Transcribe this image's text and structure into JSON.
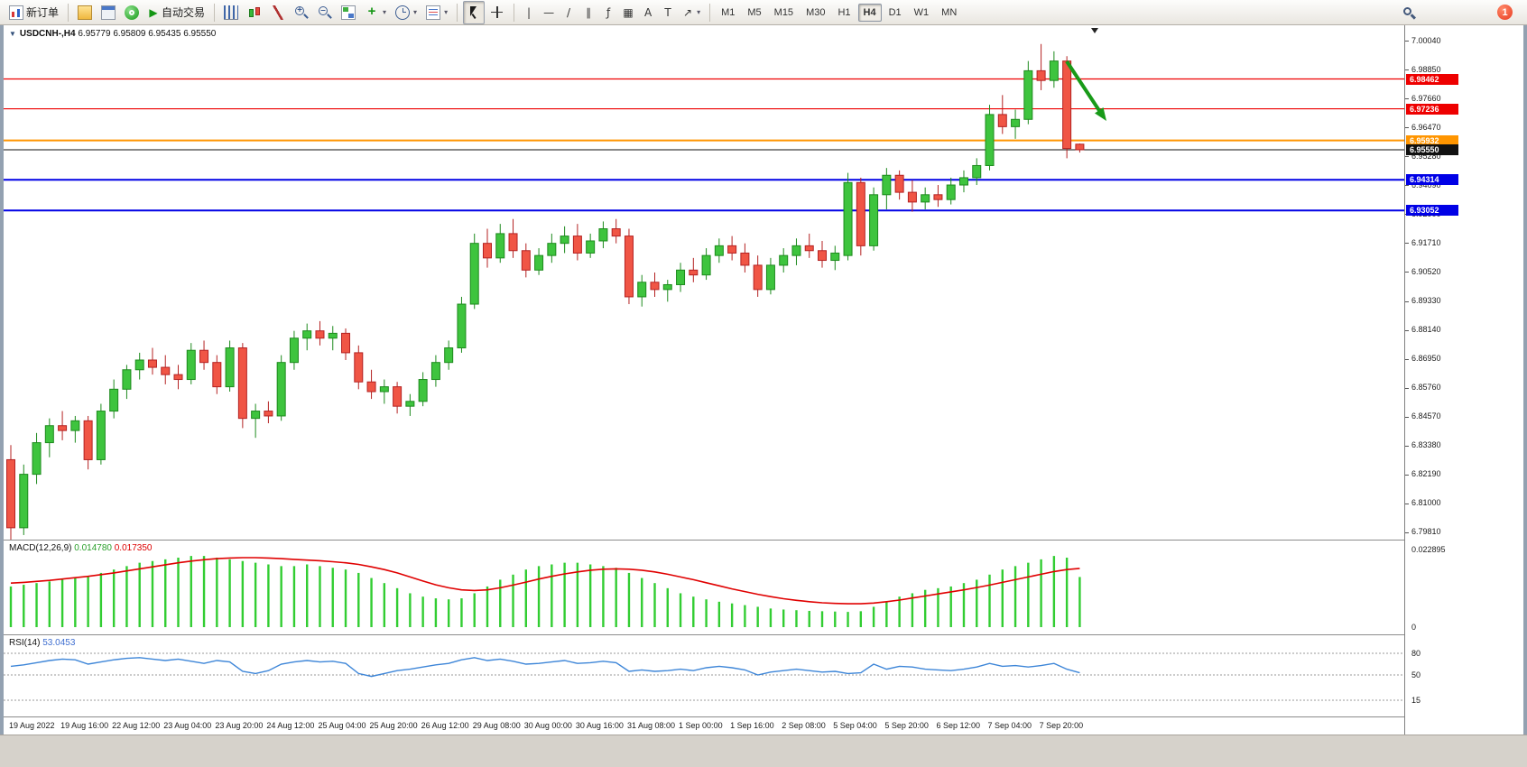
{
  "toolbar": {
    "new_order_label": "新订单",
    "autotrading_label": "自动交易",
    "timeframes": [
      "M1",
      "M5",
      "M15",
      "M30",
      "H1",
      "H4",
      "D1",
      "W1",
      "MN"
    ],
    "active_timeframe": "H4",
    "notification_badge": "1",
    "glyphs": {
      "dropdown": "▾",
      "play": "▶",
      "vertical_line": "|",
      "horizontal_line": "—",
      "trendline": "/",
      "channel": "∥",
      "fibonacci": "ƒ",
      "shapes": "▦",
      "text": "A",
      "label": "T",
      "arrows": "↗"
    }
  },
  "chart": {
    "collapse_marker": "▼",
    "symbol_period": "USDCNH-,H4",
    "open": "6.95779",
    "high": "6.95809",
    "low": "6.95435",
    "close": "6.95550"
  },
  "indicators": {
    "macd": {
      "label": "MACD(12,26,9)",
      "main_value": "0.014780",
      "signal_value": "0.017350"
    },
    "rsi": {
      "label": "RSI(14)",
      "value": "53.0453"
    }
  },
  "chart_data": {
    "type": "candlestick",
    "symbol": "USDCNH-",
    "period": "H4",
    "price_ticks": [
      "7.00040",
      "6.98850",
      "6.97660",
      "6.96470",
      "6.95280",
      "6.94090",
      "6.92900",
      "6.91710",
      "6.90520",
      "6.89330",
      "6.88140",
      "6.86950",
      "6.85760",
      "6.84570",
      "6.83380",
      "6.82190",
      "6.81000",
      "6.79810"
    ],
    "time_labels": [
      "19 Aug 2022",
      "19 Aug 16:00",
      "22 Aug 12:00",
      "23 Aug 04:00",
      "23 Aug 20:00",
      "24 Aug 12:00",
      "25 Aug 04:00",
      "25 Aug 20:00",
      "26 Aug 12:00",
      "29 Aug 08:00",
      "30 Aug 00:00",
      "30 Aug 16:00",
      "31 Aug 08:00",
      "1 Sep 00:00",
      "1 Sep 16:00",
      "2 Sep 08:00",
      "5 Sep 04:00",
      "5 Sep 20:00",
      "6 Sep 12:00",
      "7 Sep 04:00",
      "7 Sep 20:00"
    ],
    "candles": [
      [
        6.828,
        6.834,
        6.795,
        6.8
      ],
      [
        6.8,
        6.826,
        6.797,
        6.822
      ],
      [
        6.822,
        6.839,
        6.818,
        6.835
      ],
      [
        6.835,
        6.845,
        6.829,
        6.842
      ],
      [
        6.842,
        6.848,
        6.836,
        6.84
      ],
      [
        6.84,
        6.846,
        6.835,
        6.844
      ],
      [
        6.844,
        6.846,
        6.824,
        6.828
      ],
      [
        6.828,
        6.851,
        6.826,
        6.848
      ],
      [
        6.848,
        6.861,
        6.845,
        6.857
      ],
      [
        6.857,
        6.867,
        6.853,
        6.865
      ],
      [
        6.865,
        6.872,
        6.861,
        6.869
      ],
      [
        6.869,
        6.874,
        6.863,
        6.866
      ],
      [
        6.866,
        6.871,
        6.859,
        6.863
      ],
      [
        6.863,
        6.867,
        6.857,
        6.861
      ],
      [
        6.861,
        6.876,
        6.859,
        6.873
      ],
      [
        6.873,
        6.877,
        6.865,
        6.868
      ],
      [
        6.868,
        6.871,
        6.855,
        6.858
      ],
      [
        6.858,
        6.877,
        6.856,
        6.874
      ],
      [
        6.874,
        6.876,
        6.841,
        6.845
      ],
      [
        6.845,
        6.851,
        6.837,
        6.848
      ],
      [
        6.848,
        6.852,
        6.843,
        6.846
      ],
      [
        6.846,
        6.871,
        6.844,
        6.868
      ],
      [
        6.868,
        6.881,
        6.865,
        6.878
      ],
      [
        6.878,
        6.884,
        6.873,
        6.881
      ],
      [
        6.881,
        6.885,
        6.875,
        6.878
      ],
      [
        6.878,
        6.883,
        6.873,
        6.88
      ],
      [
        6.88,
        6.882,
        6.869,
        6.872
      ],
      [
        6.872,
        6.875,
        6.857,
        6.86
      ],
      [
        6.86,
        6.865,
        6.853,
        6.856
      ],
      [
        6.856,
        6.861,
        6.851,
        6.858
      ],
      [
        6.858,
        6.86,
        6.847,
        6.85
      ],
      [
        6.85,
        6.855,
        6.846,
        6.852
      ],
      [
        6.852,
        6.864,
        6.85,
        6.861
      ],
      [
        6.861,
        6.871,
        6.858,
        6.868
      ],
      [
        6.868,
        6.877,
        6.865,
        6.874
      ],
      [
        6.874,
        6.895,
        6.872,
        6.892
      ],
      [
        6.892,
        6.921,
        6.89,
        6.917
      ],
      [
        6.917,
        6.923,
        6.907,
        6.911
      ],
      [
        6.911,
        6.925,
        6.909,
        6.921
      ],
      [
        6.921,
        6.927,
        6.911,
        6.914
      ],
      [
        6.914,
        6.917,
        6.903,
        6.906
      ],
      [
        6.906,
        6.915,
        6.904,
        6.912
      ],
      [
        6.912,
        6.921,
        6.909,
        6.917
      ],
      [
        6.917,
        6.924,
        6.913,
        6.92
      ],
      [
        6.92,
        6.925,
        6.91,
        6.913
      ],
      [
        6.913,
        6.921,
        6.911,
        6.918
      ],
      [
        6.918,
        6.926,
        6.915,
        6.923
      ],
      [
        6.923,
        6.927,
        6.917,
        6.92
      ],
      [
        6.92,
        6.923,
        6.892,
        6.895
      ],
      [
        6.895,
        6.904,
        6.891,
        6.901
      ],
      [
        6.901,
        6.905,
        6.895,
        6.898
      ],
      [
        6.898,
        6.902,
        6.893,
        6.9
      ],
      [
        6.9,
        6.909,
        6.897,
        6.906
      ],
      [
        6.906,
        6.911,
        6.901,
        6.904
      ],
      [
        6.904,
        6.915,
        6.902,
        6.912
      ],
      [
        6.912,
        6.919,
        6.909,
        6.916
      ],
      [
        6.916,
        6.92,
        6.91,
        6.913
      ],
      [
        6.913,
        6.917,
        6.905,
        6.908
      ],
      [
        6.908,
        6.912,
        6.895,
        6.898
      ],
      [
        6.898,
        6.911,
        6.896,
        6.908
      ],
      [
        6.908,
        6.915,
        6.905,
        6.912
      ],
      [
        6.912,
        6.919,
        6.908,
        6.916
      ],
      [
        6.916,
        6.921,
        6.911,
        6.914
      ],
      [
        6.914,
        6.918,
        6.907,
        6.91
      ],
      [
        6.91,
        6.916,
        6.906,
        6.913
      ],
      [
        6.912,
        6.946,
        6.91,
        6.942
      ],
      [
        6.942,
        6.944,
        6.912,
        6.916
      ],
      [
        6.916,
        6.94,
        6.914,
        6.937
      ],
      [
        6.937,
        6.948,
        6.931,
        6.945
      ],
      [
        6.945,
        6.947,
        6.935,
        6.938
      ],
      [
        6.938,
        6.943,
        6.93,
        6.934
      ],
      [
        6.934,
        6.94,
        6.931,
        6.937
      ],
      [
        6.937,
        6.941,
        6.932,
        6.935
      ],
      [
        6.935,
        6.944,
        6.933,
        6.941
      ],
      [
        6.941,
        6.947,
        6.938,
        6.944
      ],
      [
        6.944,
        6.952,
        6.941,
        6.949
      ],
      [
        6.949,
        6.974,
        6.947,
        6.97
      ],
      [
        6.97,
        6.978,
        6.962,
        6.965
      ],
      [
        6.965,
        6.972,
        6.96,
        6.968
      ],
      [
        6.968,
        6.992,
        6.966,
        6.988
      ],
      [
        6.988,
        6.999,
        6.98,
        6.984
      ],
      [
        6.984,
        6.996,
        6.981,
        6.992
      ],
      [
        6.992,
        6.994,
        6.952,
        6.956
      ],
      [
        6.95779,
        6.95809,
        6.95435,
        6.9555
      ]
    ],
    "levels": [
      {
        "price": 6.98462,
        "color": "#ee0000",
        "width": 1.2
      },
      {
        "price": 6.97236,
        "color": "#ee0000",
        "width": 1.2
      },
      {
        "price": 6.95932,
        "color": "#ff9500",
        "width": 2
      },
      {
        "price": 6.94314,
        "color": "#0000e6",
        "width": 2
      },
      {
        "price": 6.93052,
        "color": "#0000e6",
        "width": 2
      }
    ],
    "current_price": {
      "price": 6.9555,
      "color": "#111111"
    },
    "annotation_arrow": {
      "color": "#189a18",
      "direction": "down-right"
    },
    "macd": {
      "hist_color": "#32CD32",
      "signal_color": "#e00000",
      "range": [
        0,
        0.022895
      ],
      "scale_ticks": [
        {
          "label": "0.022895",
          "value": 0.022895
        },
        {
          "label": "0",
          "value": 0
        }
      ],
      "hist": [
        0.012,
        0.0125,
        0.013,
        0.0135,
        0.014,
        0.0145,
        0.015,
        0.016,
        0.017,
        0.018,
        0.019,
        0.0195,
        0.02,
        0.0205,
        0.021,
        0.021,
        0.0205,
        0.02,
        0.0195,
        0.019,
        0.0185,
        0.018,
        0.018,
        0.0185,
        0.018,
        0.0175,
        0.017,
        0.016,
        0.0145,
        0.013,
        0.0115,
        0.01,
        0.009,
        0.0085,
        0.0082,
        0.0085,
        0.01,
        0.012,
        0.014,
        0.0155,
        0.017,
        0.018,
        0.0185,
        0.019,
        0.019,
        0.0185,
        0.018,
        0.0175,
        0.016,
        0.0145,
        0.013,
        0.0115,
        0.01,
        0.009,
        0.0082,
        0.0075,
        0.007,
        0.0065,
        0.006,
        0.0055,
        0.0052,
        0.005,
        0.0048,
        0.0047,
        0.0046,
        0.0045,
        0.0047,
        0.006,
        0.0075,
        0.009,
        0.01,
        0.011,
        0.0115,
        0.012,
        0.013,
        0.014,
        0.0155,
        0.017,
        0.018,
        0.019,
        0.02,
        0.021,
        0.0205,
        0.0148
      ],
      "signal": [
        0.013,
        0.0132,
        0.0135,
        0.0138,
        0.0142,
        0.0146,
        0.015,
        0.0155,
        0.016,
        0.0166,
        0.0172,
        0.0178,
        0.0184,
        0.019,
        0.0195,
        0.0199,
        0.0202,
        0.0204,
        0.0205,
        0.0205,
        0.0204,
        0.0202,
        0.02,
        0.0198,
        0.0196,
        0.0193,
        0.019,
        0.0185,
        0.0178,
        0.017,
        0.016,
        0.0148,
        0.0136,
        0.0125,
        0.0116,
        0.011,
        0.0108,
        0.011,
        0.0116,
        0.0124,
        0.0133,
        0.0142,
        0.015,
        0.0157,
        0.0163,
        0.0168,
        0.0171,
        0.0172,
        0.0171,
        0.0168,
        0.0163,
        0.0156,
        0.0148,
        0.014,
        0.0131,
        0.0122,
        0.0113,
        0.0105,
        0.0097,
        0.009,
        0.0084,
        0.0079,
        0.0075,
        0.0072,
        0.007,
        0.0069,
        0.0069,
        0.0071,
        0.0075,
        0.008,
        0.0086,
        0.0092,
        0.0098,
        0.0104,
        0.011,
        0.0117,
        0.0124,
        0.0132,
        0.014,
        0.0148,
        0.0156,
        0.0164,
        0.017,
        0.01735
      ]
    },
    "rsi": {
      "color": "#3e86d8",
      "range": [
        0,
        100
      ],
      "levels": [
        80,
        50,
        15
      ],
      "values": [
        62,
        64,
        67,
        70,
        72,
        71,
        65,
        68,
        71,
        73,
        74,
        72,
        70,
        72,
        69,
        66,
        70,
        68,
        55,
        52,
        56,
        65,
        68,
        70,
        68,
        69,
        66,
        52,
        48,
        52,
        56,
        58,
        61,
        64,
        66,
        71,
        74,
        70,
        72,
        69,
        65,
        66,
        68,
        70,
        66,
        67,
        69,
        67,
        55,
        57,
        55,
        56,
        58,
        56,
        60,
        62,
        60,
        57,
        50,
        54,
        56,
        58,
        56,
        54,
        55,
        52,
        53,
        65,
        58,
        62,
        61,
        58,
        57,
        56,
        58,
        61,
        66,
        62,
        63,
        61,
        63,
        66,
        58,
        53.05
      ]
    }
  }
}
